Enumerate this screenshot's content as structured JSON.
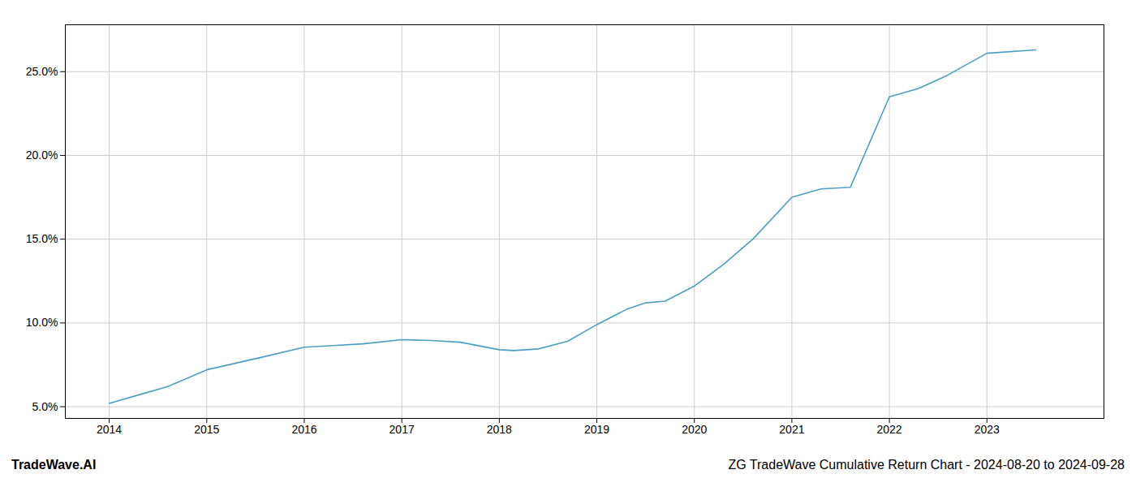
{
  "chart_data": {
    "type": "line",
    "x": [
      2014.0,
      2014.3,
      2014.6,
      2015.0,
      2015.3,
      2015.6,
      2016.0,
      2016.3,
      2016.6,
      2017.0,
      2017.3,
      2017.6,
      2018.0,
      2018.15,
      2018.4,
      2018.7,
      2019.0,
      2019.3,
      2019.5,
      2019.7,
      2020.0,
      2020.3,
      2020.6,
      2021.0,
      2021.3,
      2021.6,
      2022.0,
      2022.3,
      2022.6,
      2023.0,
      2023.5
    ],
    "values": [
      5.2,
      5.7,
      6.2,
      7.2,
      7.6,
      8.0,
      8.55,
      8.65,
      8.75,
      9.0,
      8.95,
      8.85,
      8.4,
      8.35,
      8.45,
      8.9,
      9.9,
      10.8,
      11.2,
      11.3,
      12.2,
      13.5,
      15.0,
      17.5,
      18.0,
      18.1,
      23.5,
      24.0,
      24.8,
      26.1,
      26.3
    ],
    "color": "#4a9fc4",
    "xlim": [
      2013.55,
      2024.2
    ],
    "xticks": [
      2014,
      2015,
      2016,
      2017,
      2018,
      2019,
      2020,
      2021,
      2022,
      2023
    ],
    "ylim": [
      4.3,
      27.8
    ],
    "yticks": [
      {
        "value": 5.0,
        "label": "5.0%"
      },
      {
        "value": 10.0,
        "label": "10.0%"
      },
      {
        "value": 15.0,
        "label": "15.0%"
      },
      {
        "value": 20.0,
        "label": "20.0%"
      },
      {
        "value": 25.0,
        "label": "25.0%"
      }
    ],
    "grid": true,
    "annotations": [
      "TradeWave.AI",
      "ZG TradeWave Cumulative Return Chart - 2024-08-20 to 2024-09-28"
    ]
  }
}
